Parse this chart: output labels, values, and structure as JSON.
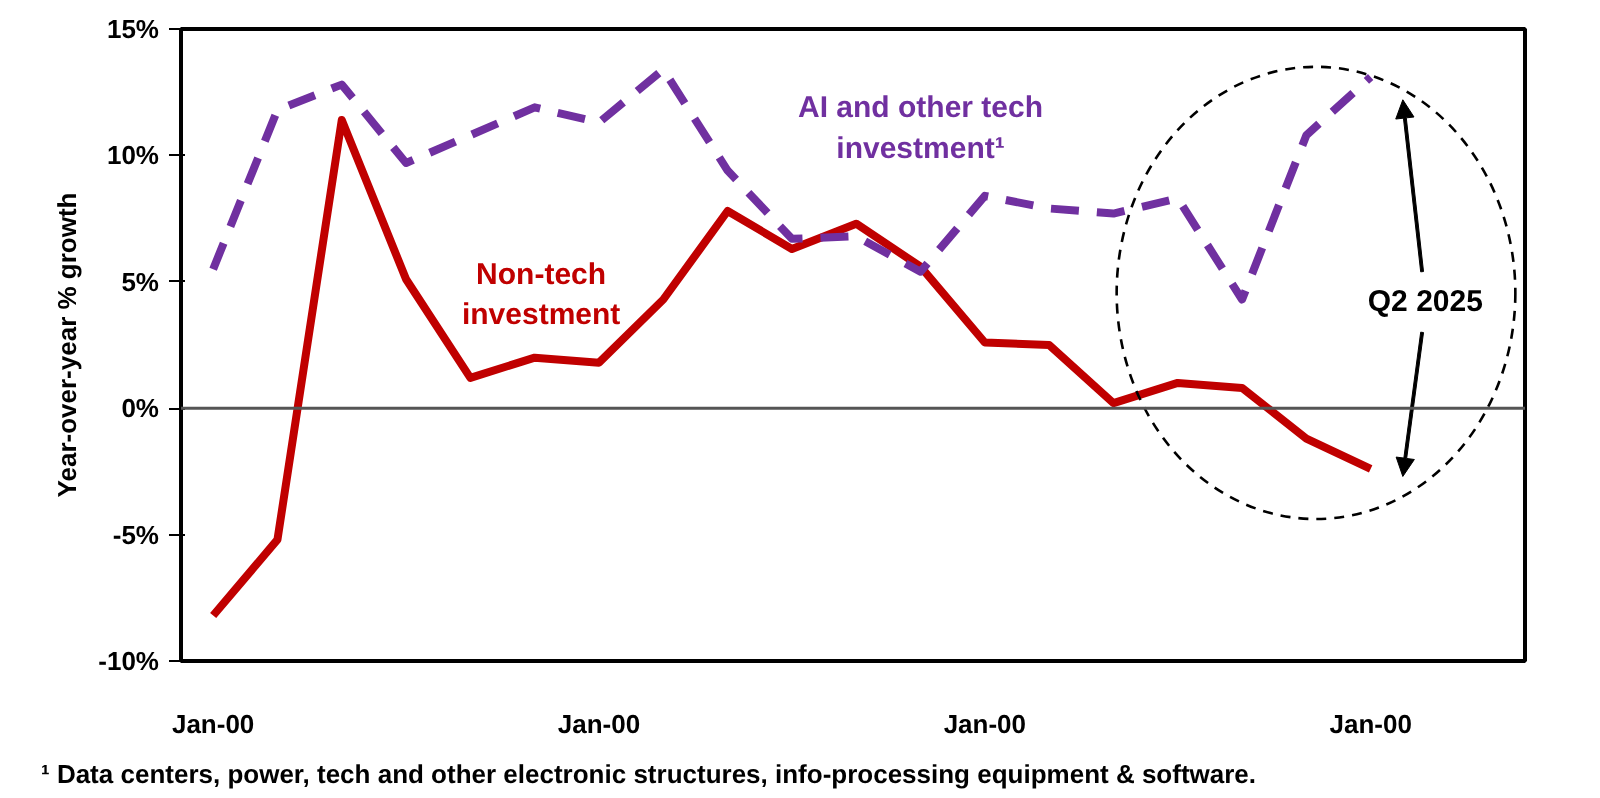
{
  "chart_data": {
    "type": "line",
    "ylabel": "Year-over-year % growth",
    "categories": [
      "Jan-00",
      null,
      null,
      null,
      null,
      null,
      "Jan-00",
      null,
      null,
      null,
      null,
      null,
      "Jan-00",
      null,
      null,
      null,
      null,
      null,
      "Jan-00"
    ],
    "series": [
      {
        "name": "Non-tech investment",
        "color": "#c00000",
        "line_style": "solid",
        "values": [
          -8.2,
          -5.2,
          11.4,
          5.1,
          1.2,
          2.0,
          1.8,
          4.3,
          7.8,
          6.3,
          7.3,
          5.6,
          2.6,
          2.5,
          0.2,
          1.0,
          0.8,
          -1.2,
          -2.4
        ]
      },
      {
        "name": "AI and other tech investment¹",
        "color": "#7030a0",
        "line_style": "dashed",
        "values": [
          5.5,
          11.8,
          12.8,
          9.7,
          10.8,
          11.9,
          11.3,
          13.4,
          9.4,
          6.7,
          6.8,
          5.4,
          8.4,
          7.9,
          7.7,
          8.3,
          4.3,
          10.8,
          13.1
        ]
      }
    ],
    "ylim": [
      -10,
      15
    ],
    "yticks": [
      {
        "value": -10,
        "label": "-10%"
      },
      {
        "value": -5,
        "label": "-5%"
      },
      {
        "value": 0,
        "label": "0%"
      },
      {
        "value": 5,
        "label": "5%"
      },
      {
        "value": 10,
        "label": "10%"
      },
      {
        "value": 15,
        "label": "15%"
      }
    ],
    "ref_lines": [
      {
        "axis": "y",
        "value": 0
      }
    ],
    "annotations": [
      "Q2 2025",
      "¹ Data centers, power, tech and other electronic structures, info-processing equipment & software."
    ],
    "grid": false,
    "marker": "none"
  }
}
